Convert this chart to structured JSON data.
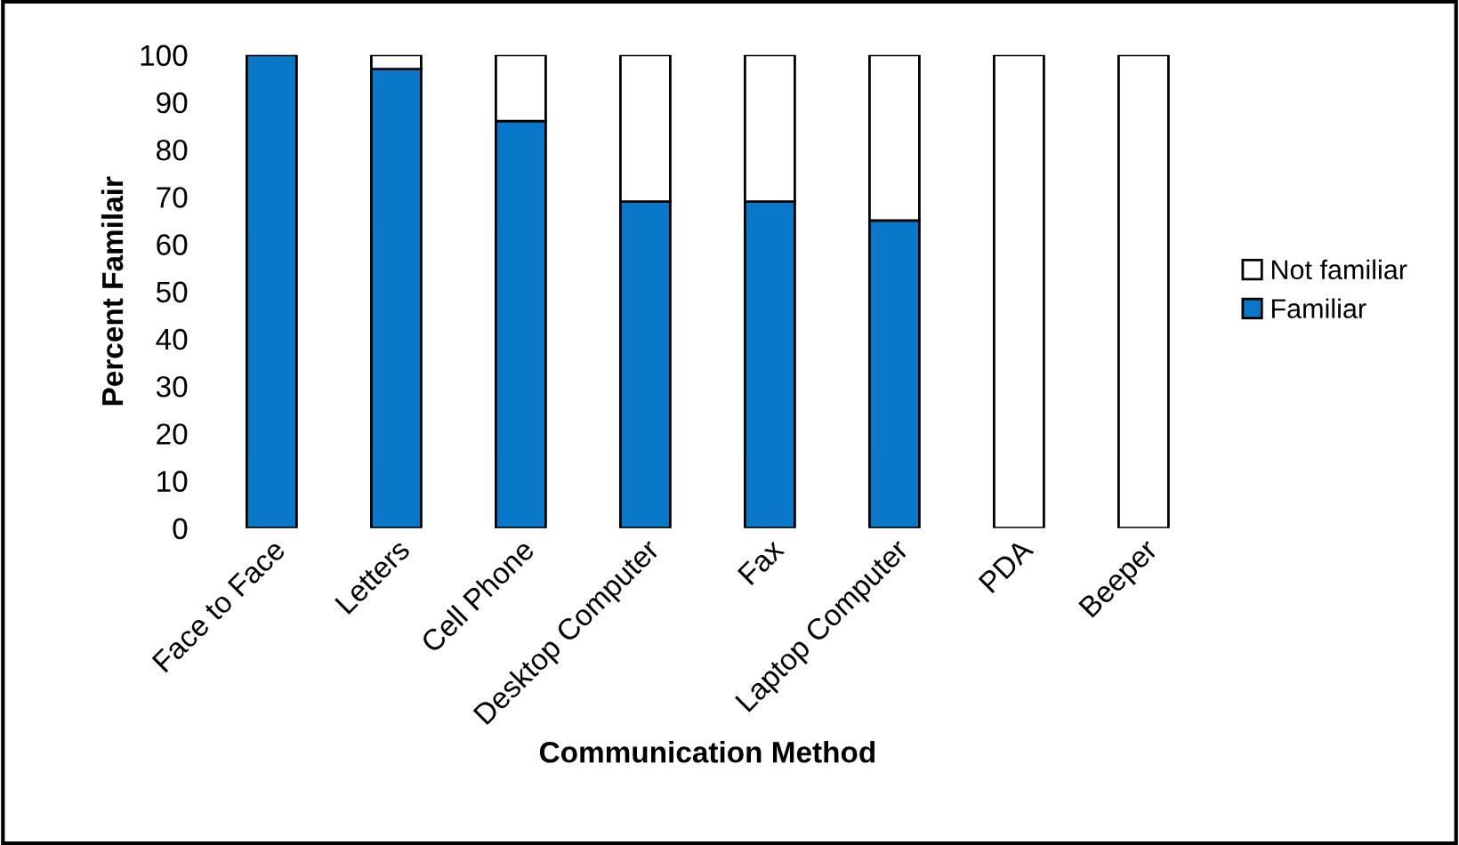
{
  "chart_data": {
    "type": "bar",
    "stacked": true,
    "xlabel": "Communication Method",
    "ylabel": "Percent Familair",
    "categories": [
      "Face to Face",
      "Letters",
      "Cell Phone",
      "Desktop Computer",
      "Fax",
      "Laptop Computer",
      "PDA",
      "Beeper"
    ],
    "series": [
      {
        "name": "Familiar",
        "color": "#0a78c8",
        "values": [
          100,
          97,
          86,
          69,
          69,
          65,
          0,
          0
        ]
      },
      {
        "name": "Not familiar",
        "color": "#ffffff",
        "values": [
          0,
          3,
          14,
          31,
          31,
          35,
          100,
          100
        ]
      }
    ],
    "ylim": [
      0,
      100
    ],
    "yticks": [
      0,
      10,
      20,
      30,
      40,
      50,
      60,
      70,
      80,
      90,
      100
    ],
    "grid": false,
    "legend": "right"
  }
}
